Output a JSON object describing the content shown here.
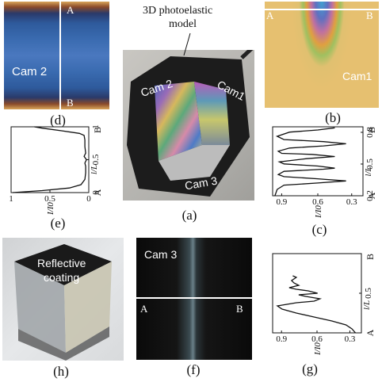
{
  "panels": {
    "d": {
      "label": "(d)",
      "cam": "Cam 2",
      "pt_a": "A",
      "pt_b": "B"
    },
    "a": {
      "label": "(a)",
      "title_line1": "3D photoelastic",
      "title_line2": "model",
      "cam1": "Cam1",
      "cam2": "Cam 2",
      "cam3": "Cam 3"
    },
    "b": {
      "label": "(b)",
      "cam": "Cam1",
      "pt_a": "A",
      "pt_b": "B"
    },
    "e": {
      "label": "(e)"
    },
    "c": {
      "label": "(c)"
    },
    "h": {
      "label": "(h)",
      "text_line1": "Reflective",
      "text_line2": "coating"
    },
    "f": {
      "label": "(f)",
      "cam": "Cam 3",
      "pt_a": "A",
      "pt_b": "B"
    },
    "g": {
      "label": "(g)"
    }
  },
  "chart_data": [
    {
      "id": "e",
      "type": "line",
      "xlabel": "I/I0",
      "ylabel": "l/L",
      "x_ticks": [
        "1",
        "0.5",
        "0"
      ],
      "y_ticks": [
        "0",
        "0.5",
        "1"
      ],
      "y_end_labels": [
        "A",
        "B"
      ],
      "xlim": [
        1,
        0
      ],
      "ylim": [
        0,
        1
      ],
      "series": [
        {
          "points": [
            [
              0.98,
              0.0
            ],
            [
              0.6,
              0.03
            ],
            [
              0.25,
              0.07
            ],
            [
              0.1,
              0.12
            ],
            [
              0.05,
              0.2
            ],
            [
              0.04,
              0.3
            ],
            [
              0.04,
              0.4
            ],
            [
              0.05,
              0.45
            ],
            [
              0.03,
              0.5
            ],
            [
              0.06,
              0.55
            ],
            [
              0.04,
              0.6
            ],
            [
              0.05,
              0.7
            ],
            [
              0.05,
              0.8
            ],
            [
              0.06,
              0.87
            ],
            [
              0.12,
              0.9
            ],
            [
              0.35,
              0.94
            ],
            [
              0.6,
              0.98
            ],
            [
              0.7,
              1.0
            ]
          ]
        }
      ]
    },
    {
      "id": "c",
      "type": "line",
      "xlabel": "I/I0",
      "ylabel": "l/L",
      "x_ticks": [
        "0.9",
        "0.6",
        "0.3"
      ],
      "y_ticks": [
        "0.2",
        "0.5",
        "0.8"
      ],
      "y_end_labels": [
        "A",
        "B"
      ],
      "xlim": [
        1.0,
        0.2
      ],
      "ylim": [
        0.2,
        0.85
      ],
      "series": [
        {
          "points": [
            [
              0.98,
              0.2
            ],
            [
              0.96,
              0.26
            ],
            [
              0.9,
              0.3
            ],
            [
              0.6,
              0.32
            ],
            [
              0.35,
              0.34
            ],
            [
              0.6,
              0.36
            ],
            [
              0.9,
              0.38
            ],
            [
              0.95,
              0.4
            ],
            [
              0.9,
              0.43
            ],
            [
              0.55,
              0.45
            ],
            [
              0.45,
              0.46
            ],
            [
              0.6,
              0.48
            ],
            [
              0.9,
              0.5
            ],
            [
              0.94,
              0.52
            ],
            [
              0.7,
              0.55
            ],
            [
              0.45,
              0.57
            ],
            [
              0.65,
              0.59
            ],
            [
              0.92,
              0.6
            ],
            [
              0.95,
              0.62
            ],
            [
              0.85,
              0.65
            ],
            [
              0.55,
              0.67
            ],
            [
              0.35,
              0.69
            ],
            [
              0.55,
              0.71
            ],
            [
              0.9,
              0.73
            ],
            [
              0.96,
              0.76
            ],
            [
              0.85,
              0.8
            ],
            [
              0.6,
              0.82
            ],
            [
              0.45,
              0.84
            ]
          ]
        }
      ]
    },
    {
      "id": "g",
      "type": "line",
      "xlabel": "I/I0",
      "ylabel": "l/L",
      "x_ticks": [
        "0.9",
        "0.6",
        "0.3"
      ],
      "y_ticks": [
        "0.5"
      ],
      "y_end_labels": [
        "A",
        "B"
      ],
      "xlim": [
        1.0,
        0.25
      ],
      "ylim": [
        0,
        1
      ],
      "series": [
        {
          "points": [
            [
              0.3,
              0.0
            ],
            [
              0.33,
              0.05
            ],
            [
              0.38,
              0.1
            ],
            [
              0.5,
              0.15
            ],
            [
              0.65,
              0.2
            ],
            [
              0.8,
              0.25
            ],
            [
              0.92,
              0.3
            ],
            [
              0.96,
              0.34
            ],
            [
              0.8,
              0.38
            ],
            [
              0.65,
              0.4
            ],
            [
              0.6,
              0.43
            ],
            [
              0.72,
              0.46
            ],
            [
              0.78,
              0.48
            ],
            [
              0.62,
              0.5
            ],
            [
              0.7,
              0.53
            ],
            [
              0.8,
              0.55
            ],
            [
              0.86,
              0.57
            ],
            [
              0.78,
              0.6
            ],
            [
              0.82,
              0.63
            ],
            [
              0.84,
              0.66
            ],
            [
              0.8,
              0.7
            ],
            [
              0.83,
              0.72
            ]
          ]
        }
      ]
    }
  ]
}
